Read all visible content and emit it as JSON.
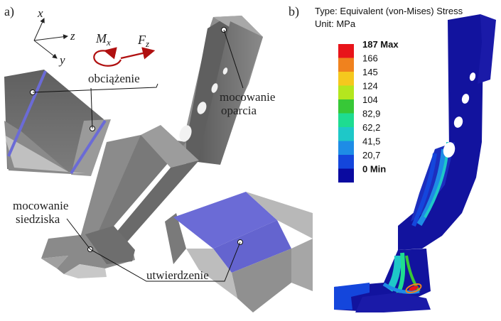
{
  "panel_a": {
    "label": "a)",
    "axes": {
      "x": "x",
      "y": "y",
      "z": "z"
    },
    "moment": {
      "symbol": "M",
      "sub": "x"
    },
    "force": {
      "symbol": "F",
      "sub": "z"
    },
    "annotations": {
      "load": "obciążenie",
      "backrest_mount_line1": "mocowanie",
      "backrest_mount_line2": "oparcia",
      "seat_mount_line1": "mocowanie",
      "seat_mount_line2": "siedziska",
      "fixation": "utwierdzenie"
    }
  },
  "panel_b": {
    "label": "b)",
    "result_type": "Type: Equivalent (von-Mises) Stress",
    "unit": "Unit: MPa",
    "legend": [
      {
        "label": "187 Max",
        "color": "#e8141a",
        "bold": true
      },
      {
        "label": "166",
        "color": "#f0821e",
        "bold": false
      },
      {
        "label": "145",
        "color": "#f5c81e",
        "bold": false
      },
      {
        "label": "124",
        "color": "#b4e61e",
        "bold": false
      },
      {
        "label": "104",
        "color": "#37c837",
        "bold": false
      },
      {
        "label": "82,9",
        "color": "#1edc91",
        "bold": false
      },
      {
        "label": "62,2",
        "color": "#1ec8c8",
        "bold": false
      },
      {
        "label": "41,5",
        "color": "#1e8ce6",
        "bold": false
      },
      {
        "label": "20,7",
        "color": "#1446dc",
        "bold": false
      },
      {
        "label": "0 Min",
        "color": "#0a0aa0",
        "bold": true
      }
    ]
  },
  "colors": {
    "metal_dark": "#6e6e6e",
    "metal_light": "#9a9a9a",
    "load_highlight": "#6b6bd6",
    "stress_base": "#12139e"
  }
}
